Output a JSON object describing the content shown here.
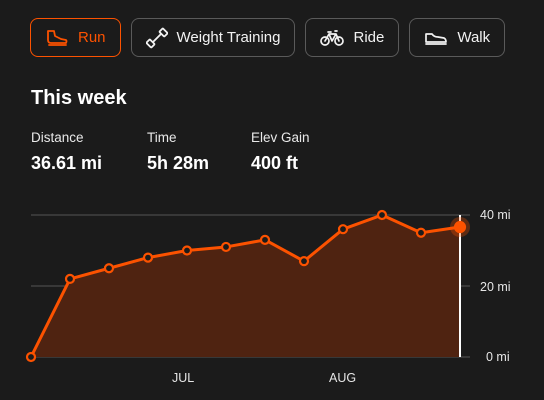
{
  "tabs": [
    {
      "label": "Run",
      "icon": "running-shoe-icon",
      "active": true
    },
    {
      "label": "Weight Training",
      "icon": "dumbbell-icon",
      "active": false
    },
    {
      "label": "Ride",
      "icon": "bicycle-icon",
      "active": false
    },
    {
      "label": "Walk",
      "icon": "walking-shoe-icon",
      "active": false
    }
  ],
  "summary": {
    "title": "This week",
    "stats": [
      {
        "label": "Distance",
        "value": "36.61 mi"
      },
      {
        "label": "Time",
        "value": "5h 28m"
      },
      {
        "label": "Elev Gain",
        "value": "400 ft"
      }
    ]
  },
  "colors": {
    "accent": "#fc5200",
    "background": "#1b1b1b",
    "fill": "#4f2311",
    "grid": "#555555"
  },
  "chart_data": {
    "type": "area",
    "title": "",
    "xlabel": "",
    "ylabel": "",
    "x_tick_labels": [
      "JUL",
      "AUG"
    ],
    "y_tick_labels": [
      "40 mi",
      "20 mi",
      "0 mi"
    ],
    "y_ticks": [
      40,
      20,
      0
    ],
    "ylim": [
      0,
      40
    ],
    "grid": true,
    "series": [
      {
        "values": [
          0,
          22,
          25,
          28,
          30,
          31,
          33,
          27,
          36,
          40,
          35,
          36.61
        ]
      }
    ],
    "highlight_index": 11
  }
}
